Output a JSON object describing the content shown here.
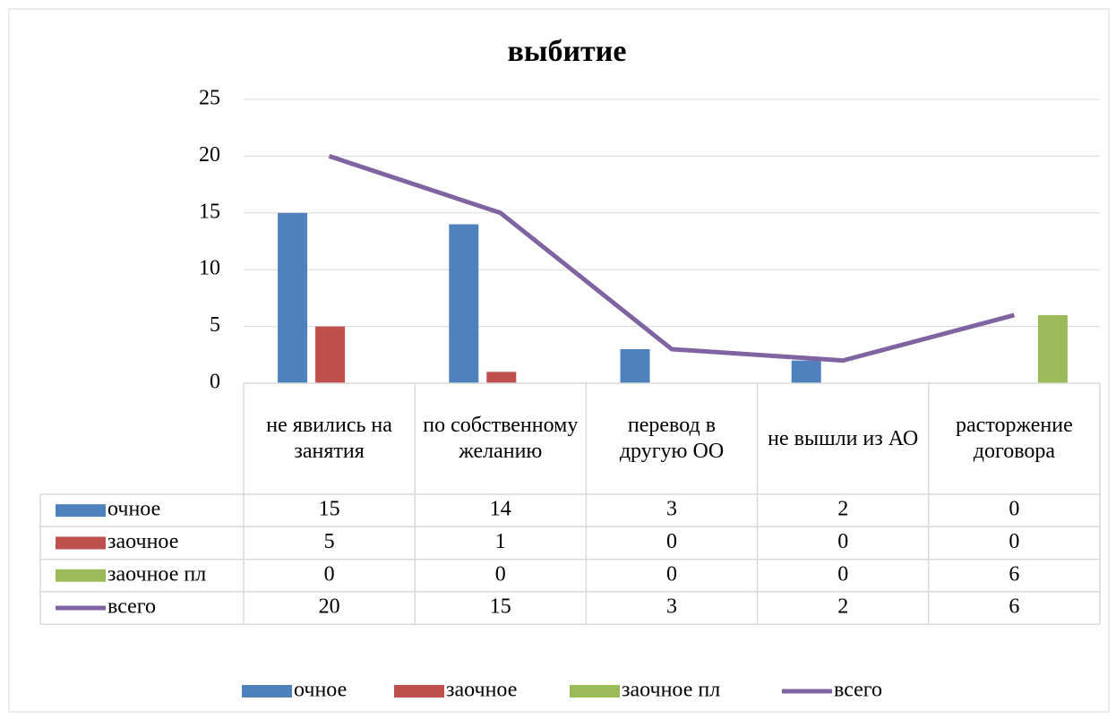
{
  "chart_data": {
    "type": "bar",
    "title": "выбитие",
    "categories": [
      "не явились на занятия",
      "по собственному желанию",
      "перевод в другую ОО",
      "не вышли из АО",
      "расторжение договора"
    ],
    "series": [
      {
        "name": "очное",
        "type": "bar",
        "color": "#4f81bd",
        "values": [
          15,
          14,
          3,
          2,
          0
        ]
      },
      {
        "name": "заочное",
        "type": "bar",
        "color": "#c0504d",
        "values": [
          5,
          1,
          0,
          0,
          0
        ]
      },
      {
        "name": "заочное пл",
        "type": "bar",
        "color": "#9bbb59",
        "values": [
          0,
          0,
          0,
          0,
          6
        ]
      },
      {
        "name": "всего",
        "type": "line",
        "color": "#8064a2",
        "values": [
          20,
          15,
          3,
          2,
          6
        ]
      }
    ],
    "ylim": [
      0,
      25
    ],
    "yticks": [
      0,
      5,
      10,
      15,
      20,
      25
    ],
    "grid": true,
    "legend": "bottom",
    "data_table": true
  }
}
